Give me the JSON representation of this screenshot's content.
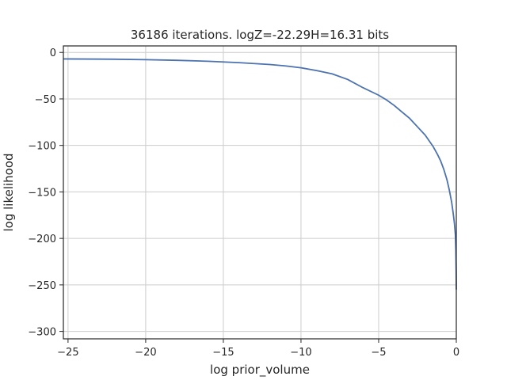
{
  "chart_data": {
    "type": "line",
    "title": "36186 iterations. logZ=-22.29H=16.31 bits",
    "xlabel": "log prior_volume",
    "ylabel": "log likelihood",
    "xlim": [
      -25.3,
      0.0
    ],
    "ylim": [
      -308,
      7
    ],
    "grid": true,
    "x_ticks": [
      -25,
      -20,
      -15,
      -10,
      -5,
      0
    ],
    "x_tick_labels": [
      "−25",
      "−20",
      "−15",
      "−10",
      "−5",
      "0"
    ],
    "y_ticks": [
      0,
      -50,
      -100,
      -150,
      -200,
      -250,
      -300
    ],
    "y_tick_labels": [
      "0",
      "−50",
      "−100",
      "−150",
      "−200",
      "−250",
      "−300"
    ],
    "line_color": "#4c72b0",
    "series": [
      {
        "x": [
          -25.3,
          -22,
          -20,
          -18,
          -16,
          -14,
          -12,
          -11,
          -10,
          -9,
          -8,
          -7,
          -6,
          -5,
          -4.5,
          -4,
          -3.5,
          -3,
          -2.5,
          -2,
          -1.5,
          -1.2,
          -1.0,
          -0.8,
          -0.6,
          -0.45,
          -0.3,
          -0.2,
          -0.12,
          -0.06,
          -0.03,
          -0.01,
          0.0
        ],
        "y": [
          -7,
          -7.3,
          -7.8,
          -8.5,
          -9.5,
          -11,
          -13,
          -14.5,
          -16.5,
          -19.5,
          -23,
          -29,
          -38,
          -46,
          -51,
          -57,
          -64,
          -71,
          -80,
          -89,
          -101,
          -110,
          -117,
          -126,
          -137,
          -148,
          -161,
          -173,
          -184,
          -196,
          -212,
          -235,
          -255
        ]
      }
    ]
  }
}
